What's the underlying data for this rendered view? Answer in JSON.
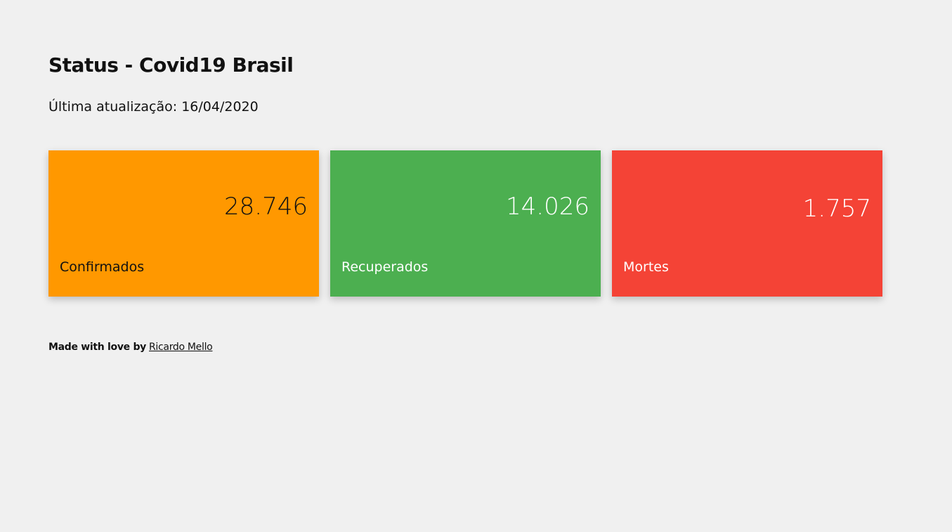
{
  "header": {
    "title": "Status - Covid19 Brasil",
    "subtitle": "Última atualização: 16/04/2020"
  },
  "cards": [
    {
      "value": "28.746",
      "label": "Confirmados"
    },
    {
      "value": "14.026",
      "label": "Recuperados"
    },
    {
      "value": "1.757",
      "label": "Mortes"
    }
  ],
  "footer": {
    "text": "Made with love by",
    "link": "Ricardo Mello"
  }
}
